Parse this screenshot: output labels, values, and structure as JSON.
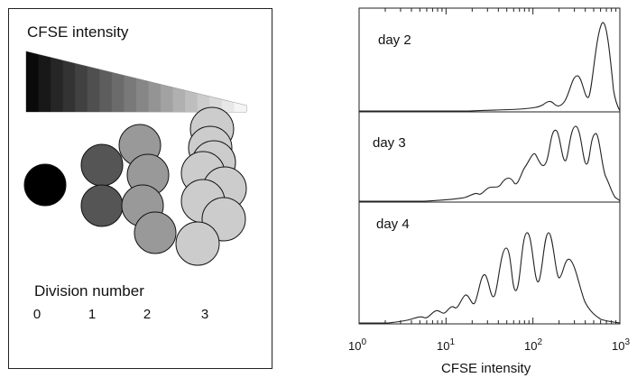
{
  "schematic": {
    "intensity_title": "CFSE intensity",
    "division_title": "Division number",
    "division_labels": [
      "0",
      "1",
      "2",
      "3"
    ],
    "cell_colors": [
      "#000000",
      "#555555",
      "#999999",
      "#cccccc"
    ]
  },
  "histograms": {
    "panels": [
      {
        "label": "day 2"
      },
      {
        "label": "day 3"
      },
      {
        "label": "day 4"
      }
    ],
    "x_tick_base": "10",
    "x_tick_exponents": [
      "0",
      "1",
      "2",
      "3"
    ],
    "x_axis_label": "CFSE intensity",
    "x_scale": "log",
    "x_range": [
      1,
      1000
    ]
  }
}
